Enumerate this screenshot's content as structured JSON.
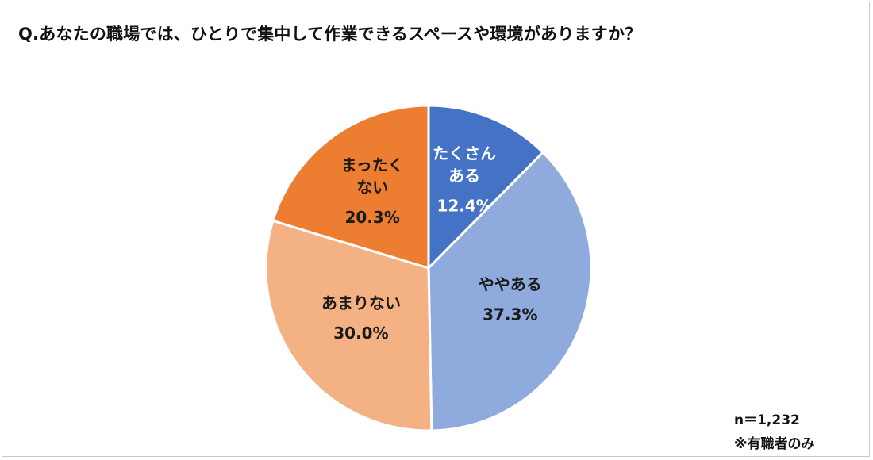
{
  "title": "Q.あなたの職場では、ひとりで集中して作業できるスペースや環境がありますか？",
  "notes": {
    "sample_size": "n＝1,232",
    "scope": "※有職者のみ"
  },
  "chart_data": {
    "type": "pie",
    "title": "Q.あなたの職場では、ひとりで集中して作業できるスペースや環境がありますか？",
    "start_angle_deg": 0,
    "direction": "clockwise",
    "slices": [
      {
        "label_lines": [
          "たくさん",
          "ある"
        ],
        "label": "たくさんある",
        "value": 12.4,
        "value_label": "12.4%",
        "color": "#4472C4",
        "text_color": "#ffffff"
      },
      {
        "label_lines": [
          "ややある"
        ],
        "label": "ややある",
        "value": 37.3,
        "value_label": "37.3%",
        "color": "#8FAADC",
        "text_color": "#1a1a1a"
      },
      {
        "label_lines": [
          "あまりない"
        ],
        "label": "あまりない",
        "value": 30.0,
        "value_label": "30.0%",
        "color": "#F4B183",
        "text_color": "#1a1a1a"
      },
      {
        "label_lines": [
          "まったく",
          "ない"
        ],
        "label": "まったくない",
        "value": 20.3,
        "value_label": "20.3%",
        "color": "#ED7D31",
        "text_color": "#1a1a1a"
      }
    ],
    "legend": "none"
  }
}
